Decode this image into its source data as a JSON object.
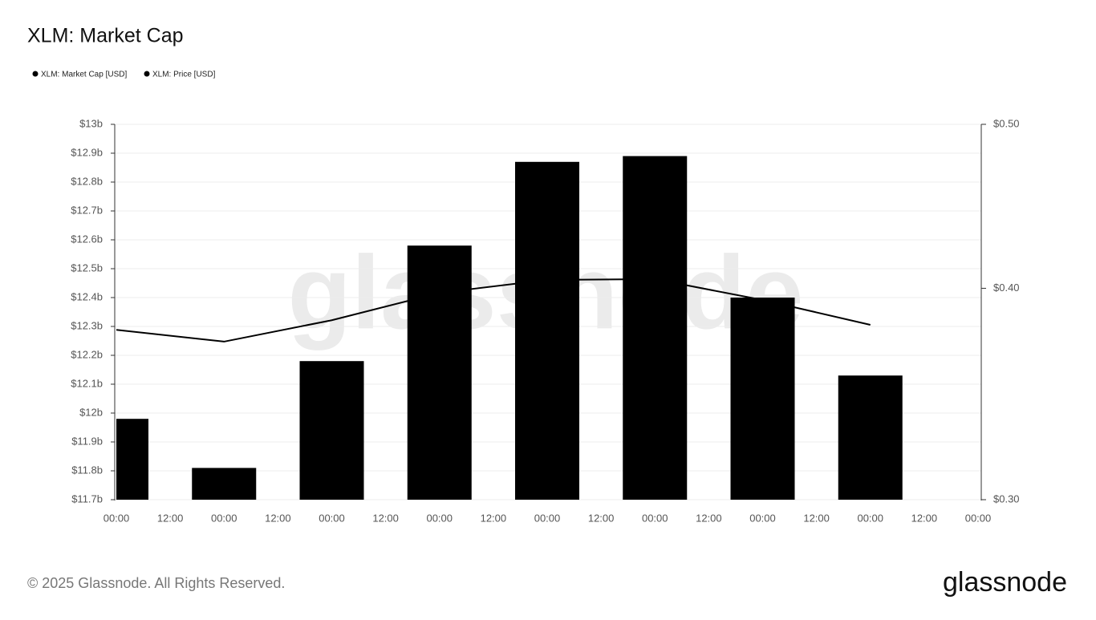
{
  "chart_data": {
    "type": "bar",
    "title": "XLM: Market Cap",
    "watermark": "glassnode",
    "x": [
      0,
      24,
      48,
      72,
      96,
      120,
      144,
      168
    ],
    "xlim": [
      0,
      192
    ],
    "xticks": [
      {
        "value": 0,
        "label": "00:00"
      },
      {
        "value": 12,
        "label": "12:00"
      },
      {
        "value": 24,
        "label": "00:00"
      },
      {
        "value": 36,
        "label": "12:00"
      },
      {
        "value": 48,
        "label": "00:00"
      },
      {
        "value": 60,
        "label": "12:00"
      },
      {
        "value": 72,
        "label": "00:00"
      },
      {
        "value": 84,
        "label": "12:00"
      },
      {
        "value": 96,
        "label": "00:00"
      },
      {
        "value": 108,
        "label": "12:00"
      },
      {
        "value": 120,
        "label": "00:00"
      },
      {
        "value": 132,
        "label": "12:00"
      },
      {
        "value": 144,
        "label": "00:00"
      },
      {
        "value": 156,
        "label": "12:00"
      },
      {
        "value": 168,
        "label": "00:00"
      },
      {
        "value": 180,
        "label": "12:00"
      },
      {
        "value": 192,
        "label": "00:00"
      }
    ],
    "ylim": [
      11.7,
      13
    ],
    "yticks": [
      {
        "value": 11.7,
        "label": "$11.7b"
      },
      {
        "value": 11.8,
        "label": "$11.8b"
      },
      {
        "value": 11.9,
        "label": "$11.9b"
      },
      {
        "value": 12,
        "label": "$12b"
      },
      {
        "value": 12.1,
        "label": "$12.1b"
      },
      {
        "value": 12.2,
        "label": "$12.2b"
      },
      {
        "value": 12.3,
        "label": "$12.3b"
      },
      {
        "value": 12.4,
        "label": "$12.4b"
      },
      {
        "value": 12.5,
        "label": "$12.5b"
      },
      {
        "value": 12.6,
        "label": "$12.6b"
      },
      {
        "value": 12.7,
        "label": "$12.7b"
      },
      {
        "value": 12.8,
        "label": "$12.8b"
      },
      {
        "value": 12.9,
        "label": "$12.9b"
      },
      {
        "value": 13,
        "label": "$13b"
      }
    ],
    "y2lim": [
      0.3,
      0.5
    ],
    "y2scale": "log",
    "y2ticks": [
      {
        "value": 0.3,
        "label": "$0.30"
      },
      {
        "value": 0.4,
        "label": "$0.40"
      },
      {
        "value": 0.5,
        "label": "$0.50"
      }
    ],
    "grid": true,
    "series": [
      {
        "name": "XLM: Market Cap [USD]",
        "type": "bar",
        "color": "#000000",
        "values": [
          11.98,
          11.81,
          12.18,
          12.58,
          12.87,
          12.89,
          12.4,
          12.13
        ]
      },
      {
        "name": "XLM: Price [USD]",
        "type": "line",
        "axis": "y2",
        "color": "#000000",
        "values": [
          0.378,
          0.372,
          0.383,
          0.3975,
          0.4046,
          0.405,
          0.3937,
          0.3806
        ]
      }
    ]
  },
  "footer": {
    "copyright": "© 2025 Glassnode. All Rights Reserved.",
    "logo": "glassnode"
  }
}
